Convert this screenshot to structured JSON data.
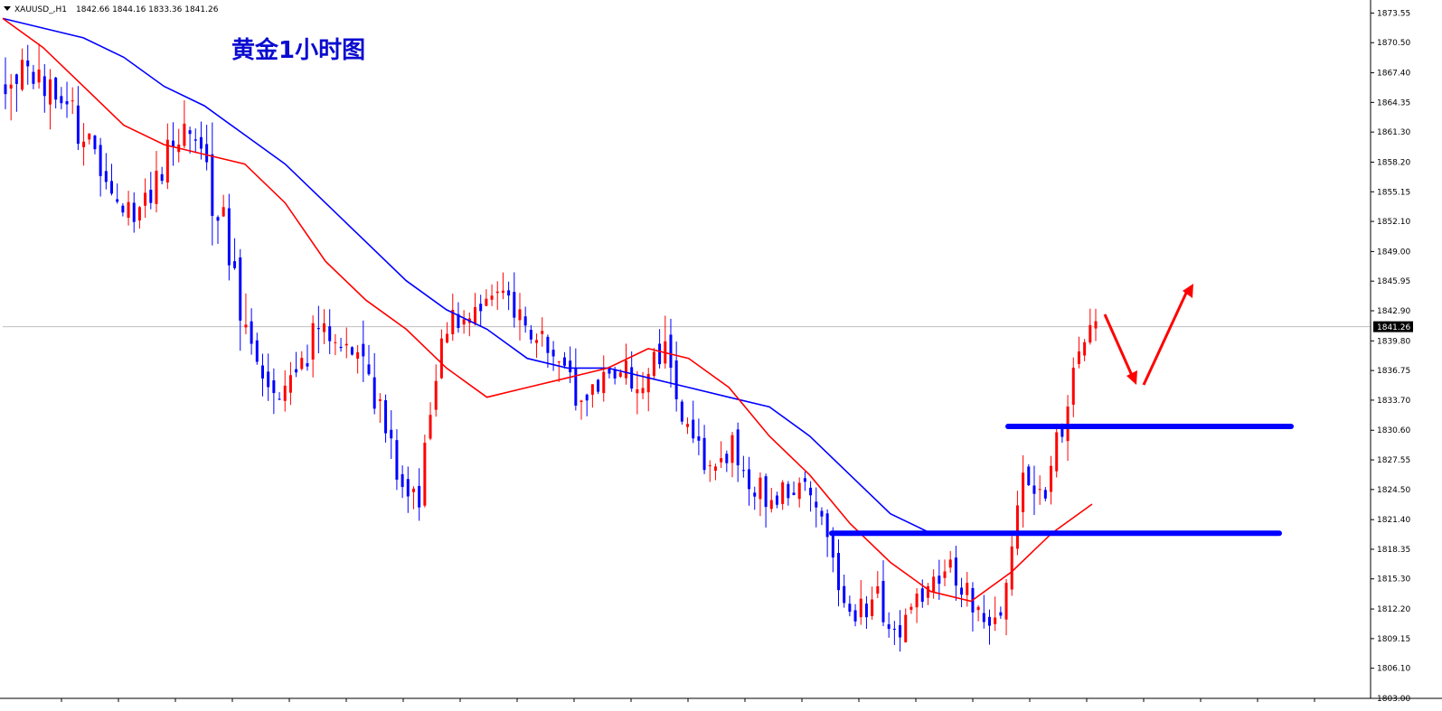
{
  "header": {
    "symbol": "XAUUSD_,H1",
    "ohlc": "1842.66 1844.16 1833.36 1841.26"
  },
  "title": "黄金1小时图",
  "colors": {
    "bull": "#ff0000",
    "bear": "#0000ff",
    "ma_fast": "#ff0000",
    "ma_slow": "#0000ff",
    "level": "#0000ff",
    "arrows": "#ff0000",
    "price_line": "#c0c0c0",
    "price_badge": "#000000"
  },
  "chart_data": {
    "type": "candlestick",
    "y_ticks": [
      "1873.55",
      "1870.50",
      "1867.40",
      "1864.35",
      "1861.30",
      "1858.20",
      "1855.15",
      "1852.10",
      "1849.00",
      "1845.95",
      "1842.90",
      "1839.80",
      "1836.75",
      "1833.70",
      "1830.60",
      "1827.55",
      "1824.50",
      "1821.40",
      "1818.35",
      "1815.30",
      "1812.20",
      "1809.15",
      "1806.10",
      "1803.00"
    ],
    "ylim": [
      1803.0,
      1874.8
    ],
    "current_price": 1841.26,
    "current_price_label": "1841.26",
    "horizontal_levels": [
      {
        "price": 1831.0,
        "x_start": 0.6,
        "x_end": 0.78
      },
      {
        "price": 1820.0,
        "x_start": 0.5,
        "x_end": 0.77
      }
    ],
    "anchors": [
      [
        0,
        1868,
        4
      ],
      [
        8,
        1866,
        3
      ],
      [
        14,
        1861,
        3
      ],
      [
        20,
        1854,
        2
      ],
      [
        24,
        1853,
        2
      ],
      [
        28,
        1858,
        2.5
      ],
      [
        33,
        1862,
        3
      ],
      [
        36,
        1856,
        4
      ],
      [
        39,
        1853,
        3
      ],
      [
        42,
        1841,
        4
      ],
      [
        46,
        1835,
        2.5
      ],
      [
        52,
        1836,
        2.5
      ],
      [
        56,
        1841,
        3
      ],
      [
        60,
        1837,
        3
      ],
      [
        64,
        1839,
        3
      ],
      [
        70,
        1826,
        2.5
      ],
      [
        74,
        1824,
        3
      ],
      [
        78,
        1841,
        2
      ],
      [
        84,
        1843,
        2
      ],
      [
        88,
        1845,
        2
      ],
      [
        92,
        1842,
        2.5
      ],
      [
        98,
        1838,
        2.5
      ],
      [
        102,
        1834,
        2.5
      ],
      [
        108,
        1837,
        2
      ],
      [
        114,
        1836,
        2.5
      ],
      [
        118,
        1839,
        3
      ],
      [
        122,
        1831,
        2.5
      ],
      [
        126,
        1826,
        2
      ],
      [
        130,
        1829,
        2
      ],
      [
        134,
        1825,
        2.5
      ],
      [
        138,
        1823,
        2.5
      ],
      [
        142,
        1826,
        2
      ],
      [
        146,
        1822,
        2.5
      ],
      [
        150,
        1812,
        2
      ],
      [
        156,
        1813,
        2.5
      ],
      [
        160,
        1810,
        2
      ],
      [
        166,
        1816,
        2
      ],
      [
        170,
        1816,
        2
      ],
      [
        174,
        1812,
        2.5
      ],
      [
        178,
        1810,
        2.5
      ],
      [
        180,
        1818,
        2.5
      ],
      [
        182,
        1826,
        2.5
      ],
      [
        186,
        1825,
        2.5
      ],
      [
        189,
        1831,
        2.5
      ],
      [
        192,
        1838,
        2
      ],
      [
        195,
        1842,
        2
      ]
    ],
    "ma_fast": [
      1873,
      1870,
      1866,
      1862,
      1860,
      1859,
      1858,
      1854,
      1848,
      1844,
      1841,
      1837,
      1834,
      1835,
      1836,
      1837,
      1839,
      1838,
      1835,
      1830,
      1826,
      1821,
      1817,
      1814,
      1813,
      1816,
      1820,
      1823
    ],
    "ma_slow": [
      1873,
      1872,
      1871,
      1869,
      1866,
      1864,
      1861,
      1858,
      1854,
      1850,
      1846,
      1843,
      1841,
      1838,
      1837,
      1837,
      1836,
      1835,
      1834,
      1833,
      1830,
      1826,
      1822,
      1820,
      1820,
      1820,
      1820,
      1820
    ]
  }
}
